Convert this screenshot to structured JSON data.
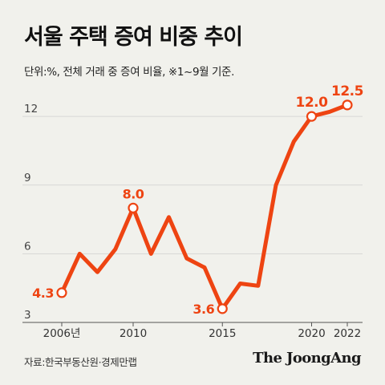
{
  "title": "서울 주택 증여 비중 추이",
  "subtitle": "단위:%, 전체 거래 중 증여 비율, ※1~9월 기준.",
  "source": "자료:한국부동산원·경제만랩",
  "brand": "The JoongAng",
  "colors": {
    "line": "#ee4412",
    "background": "#f1f1ec",
    "grid": "#cfcfcf"
  },
  "chart_data": {
    "type": "line",
    "title": "서울 주택 증여 비중 추이",
    "ylabel": "",
    "xlabel": "",
    "ylim": [
      3,
      12.6
    ],
    "xlim": [
      2006,
      2022
    ],
    "yticks": [
      3,
      6,
      9,
      12
    ],
    "xticks": [
      {
        "value": 2006,
        "label": "2006년"
      },
      {
        "value": 2010,
        "label": "2010"
      },
      {
        "value": 2015,
        "label": "2015"
      },
      {
        "value": 2020,
        "label": "2020"
      },
      {
        "value": 2022,
        "label": "2022"
      }
    ],
    "grid": true,
    "x": [
      2006,
      2007,
      2008,
      2009,
      2010,
      2011,
      2012,
      2013,
      2014,
      2015,
      2016,
      2017,
      2018,
      2019,
      2020,
      2021,
      2022
    ],
    "values": [
      4.3,
      6.0,
      5.2,
      6.2,
      8.0,
      6.0,
      7.6,
      5.8,
      5.4,
      3.6,
      4.7,
      4.6,
      9.0,
      10.9,
      12.0,
      12.2,
      12.5
    ],
    "annotations": [
      {
        "x": 2006,
        "y": 4.3,
        "label": "4.3",
        "pos": "left"
      },
      {
        "x": 2010,
        "y": 8.0,
        "label": "8.0",
        "pos": "above"
      },
      {
        "x": 2015,
        "y": 3.6,
        "label": "3.6",
        "pos": "left"
      },
      {
        "x": 2020,
        "y": 12.0,
        "label": "12.0",
        "pos": "above"
      },
      {
        "x": 2022,
        "y": 12.5,
        "label": "12.5",
        "pos": "above"
      }
    ]
  }
}
